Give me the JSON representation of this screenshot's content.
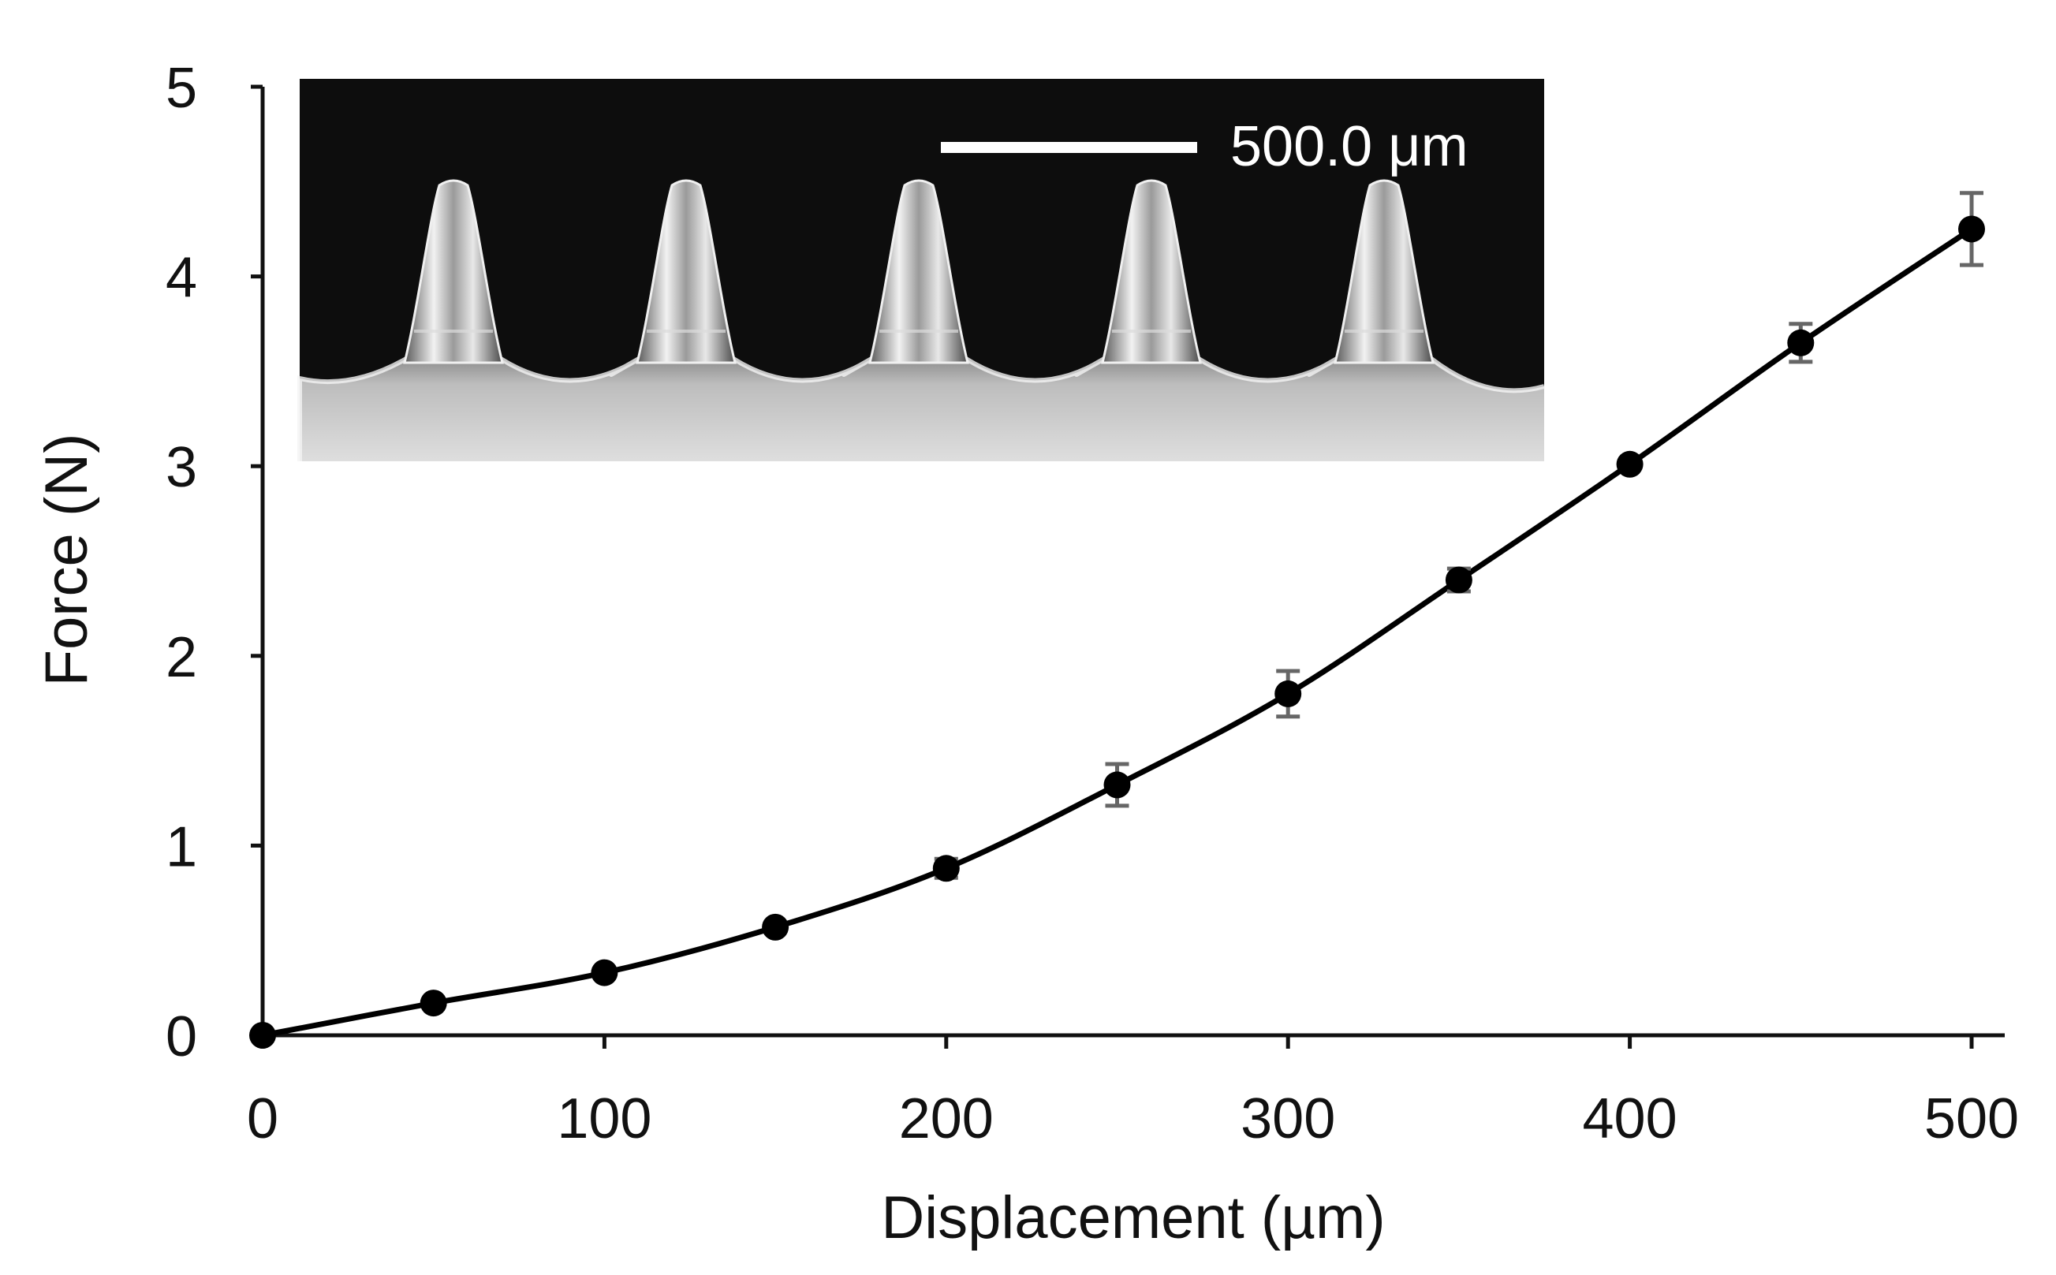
{
  "chart_data": {
    "type": "line",
    "xlabel": "Displacement (µm)",
    "ylabel": "Force (N)",
    "xlim": [
      0,
      500
    ],
    "ylim": [
      0,
      5
    ],
    "xticks": [
      "0",
      "100",
      "200",
      "300",
      "400",
      "500"
    ],
    "yticks": [
      "0",
      "1",
      "2",
      "3",
      "4",
      "5"
    ],
    "grid": false,
    "series": [
      {
        "x": [
          0,
          50,
          100,
          150,
          200,
          250,
          300,
          350,
          400,
          450,
          500
        ],
        "y": [
          0,
          0.17,
          0.33,
          0.57,
          0.88,
          1.32,
          1.8,
          2.4,
          3.01,
          3.65,
          4.25
        ],
        "error": [
          0,
          0,
          0,
          0,
          0.05,
          0.11,
          0.12,
          0.06,
          0,
          0.1,
          0.19
        ],
        "color": "#000000",
        "error_color": "#666666"
      }
    ],
    "inset": {
      "description_icon": "microneedle-array-micrograph",
      "scale_bar_label": "500.0 μm",
      "background": "#0d0d0d",
      "needle_count": 5
    }
  }
}
